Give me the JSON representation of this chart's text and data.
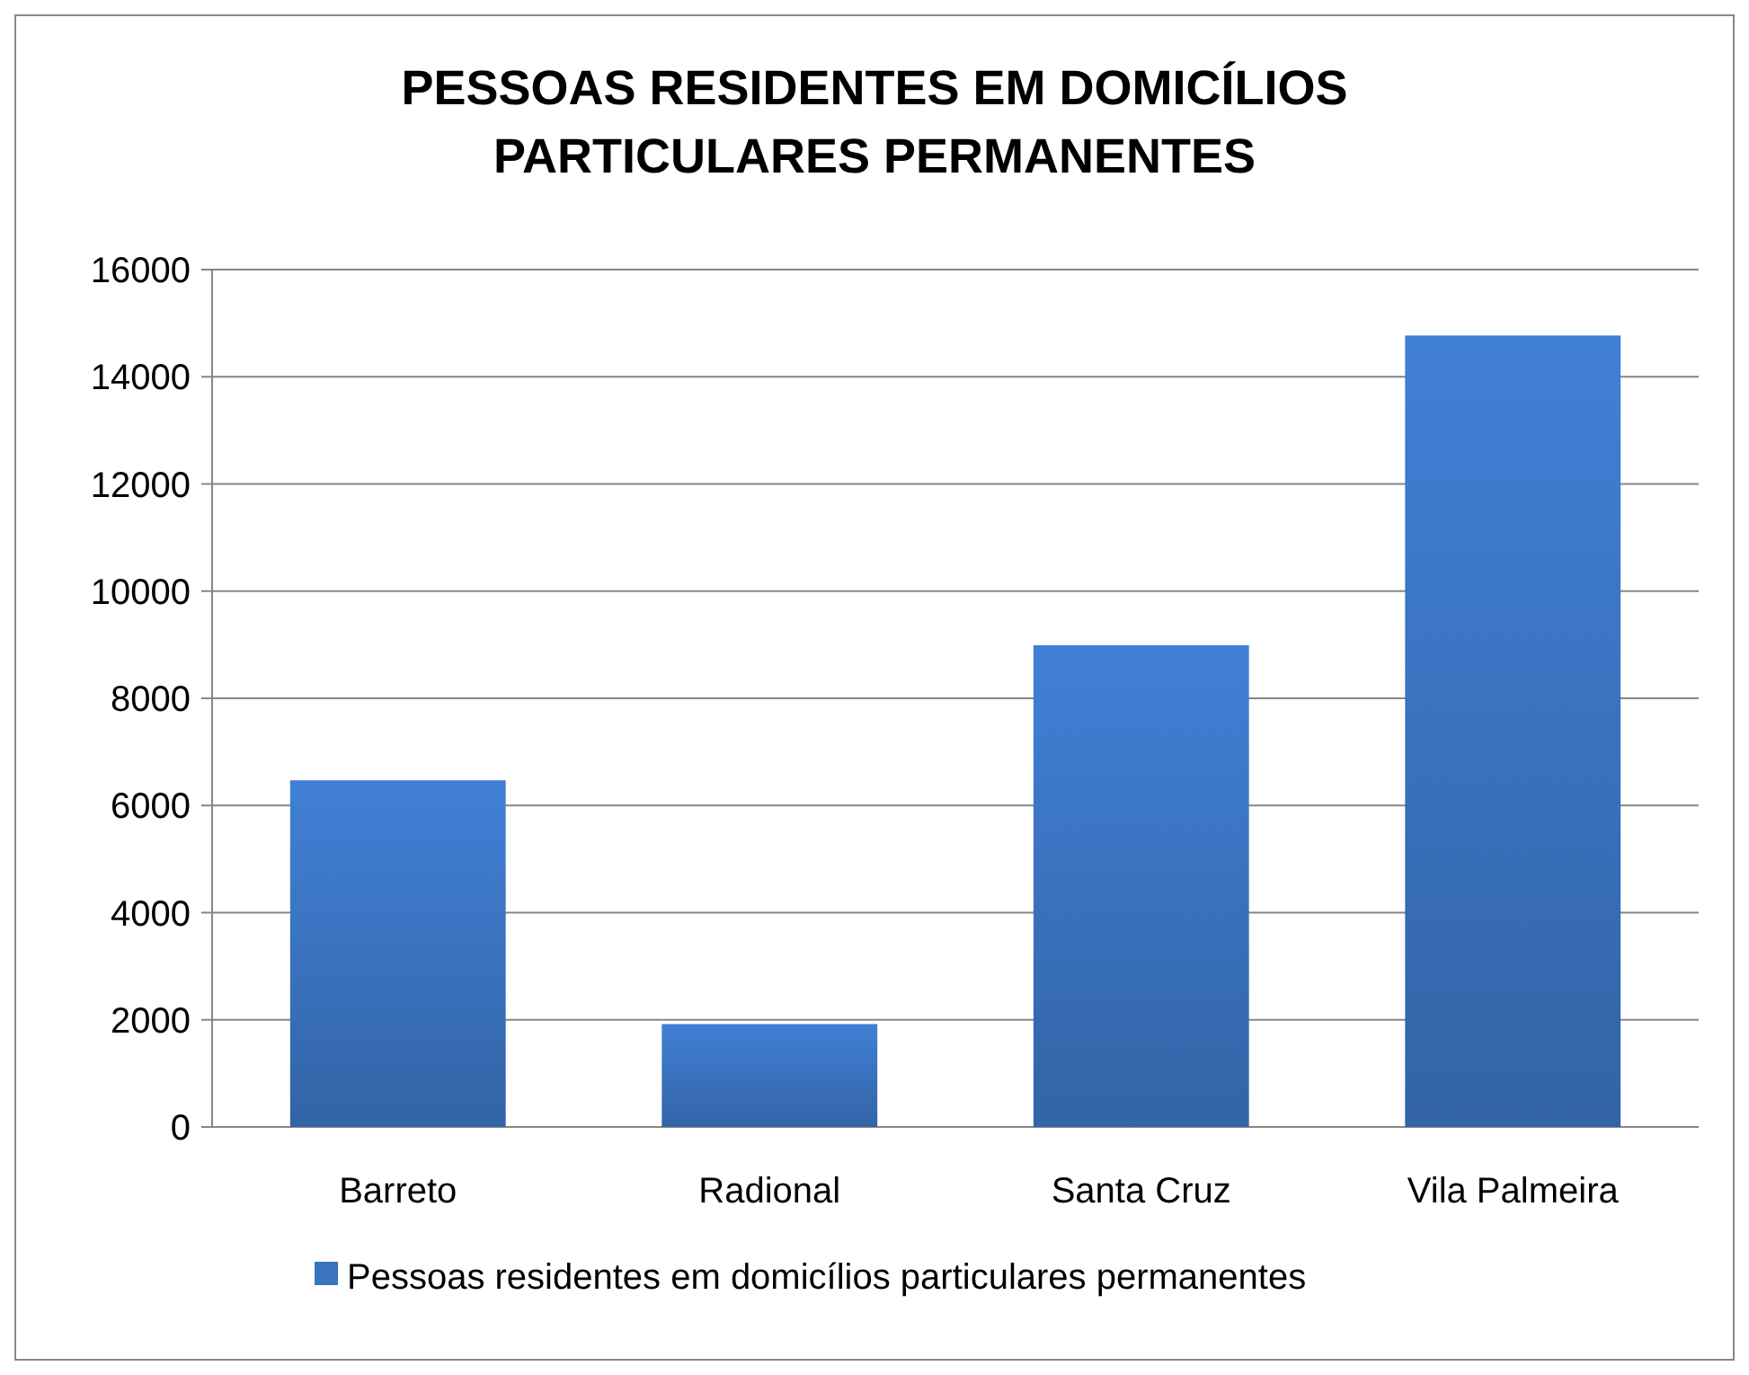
{
  "chart_data": {
    "type": "bar",
    "title": "PESSOAS RESIDENTES EM DOMICÍLIOS PARTICULARES PERMANENTES",
    "categories": [
      "Barreto",
      "Radional",
      "Santa Cruz",
      "Vila Palmeira"
    ],
    "series": [
      {
        "name": "Pessoas residentes em domicílios particulares permanentes",
        "color": "#3a73c0",
        "values": [
          6470,
          1920,
          8990,
          14770
        ]
      }
    ],
    "ylim": [
      0,
      16000
    ],
    "yticks": [
      0,
      2000,
      4000,
      6000,
      8000,
      10000,
      12000,
      14000,
      16000
    ],
    "grid": "y",
    "legend": "bottom"
  }
}
